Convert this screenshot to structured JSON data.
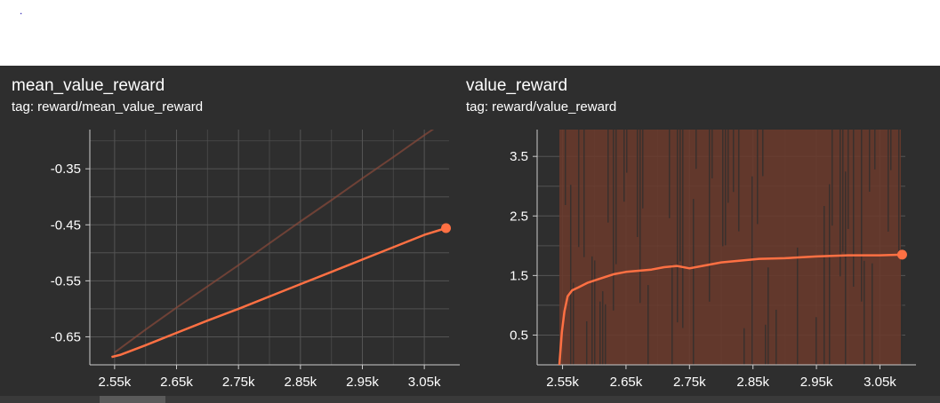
{
  "header": {
    "mark": "."
  },
  "colors": {
    "background": "#2e2e2e",
    "line": "#ff7043",
    "raw_line": "#8a4a3a",
    "band": "#6b3a2c",
    "grid": "#555555",
    "axis": "#cccccc",
    "text": "#ffffff"
  },
  "chart_data": [
    {
      "type": "line",
      "title": "mean_value_reward",
      "subtitle": "tag: reward/mean_value_reward",
      "xlim": [
        2510,
        3090
      ],
      "ylim": [
        -0.7,
        -0.28
      ],
      "xticks": [
        2550,
        2650,
        2750,
        2850,
        2950,
        3050
      ],
      "xtick_labels": [
        "2.55k",
        "2.65k",
        "2.75k",
        "2.85k",
        "2.95k",
        "3.05k"
      ],
      "yticks": [
        -0.35,
        -0.45,
        -0.55,
        -0.65
      ],
      "ytick_labels": [
        "-0.35",
        "-0.45",
        "-0.55",
        "-0.65"
      ],
      "grid": true,
      "series": [
        {
          "role": "raw",
          "x": [
            2550,
            2600,
            2650,
            2700,
            2750,
            2800,
            2850,
            2900,
            2950,
            3000,
            3050,
            3070
          ],
          "y": [
            -0.678,
            -0.637,
            -0.598,
            -0.56,
            -0.522,
            -0.483,
            -0.444,
            -0.406,
            -0.367,
            -0.329,
            -0.29,
            -0.275
          ]
        },
        {
          "role": "smoothed",
          "x": [
            2545,
            2560,
            2600,
            2650,
            2700,
            2750,
            2800,
            2850,
            2900,
            2950,
            3000,
            3050,
            3085
          ],
          "y": [
            -0.686,
            -0.682,
            -0.665,
            -0.643,
            -0.621,
            -0.6,
            -0.578,
            -0.556,
            -0.534,
            -0.512,
            -0.49,
            -0.468,
            -0.456
          ]
        }
      ]
    },
    {
      "type": "line",
      "title": "value_reward",
      "subtitle": "tag: reward/value_reward",
      "xlim": [
        2510,
        3090
      ],
      "ylim": [
        0.0,
        3.95
      ],
      "xticks": [
        2550,
        2650,
        2750,
        2850,
        2950,
        3050
      ],
      "xtick_labels": [
        "2.55k",
        "2.65k",
        "2.75k",
        "2.85k",
        "2.95k",
        "3.05k"
      ],
      "yticks": [
        3.5,
        2.5,
        1.5,
        0.5
      ],
      "ytick_labels": [
        "3.5",
        "2.5",
        "1.5",
        "0.5"
      ],
      "grid": true,
      "band_x": [
        2545,
        3083
      ],
      "series": [
        {
          "role": "smoothed",
          "x": [
            2545,
            2549,
            2553,
            2558,
            2565,
            2575,
            2590,
            2610,
            2630,
            2650,
            2670,
            2690,
            2710,
            2730,
            2750,
            2770,
            2800,
            2830,
            2860,
            2900,
            2950,
            3000,
            3050,
            3085
          ],
          "y": [
            0.0,
            0.55,
            0.9,
            1.15,
            1.25,
            1.3,
            1.38,
            1.45,
            1.52,
            1.56,
            1.58,
            1.6,
            1.64,
            1.66,
            1.62,
            1.66,
            1.72,
            1.75,
            1.78,
            1.79,
            1.82,
            1.84,
            1.84,
            1.85
          ]
        }
      ]
    }
  ]
}
